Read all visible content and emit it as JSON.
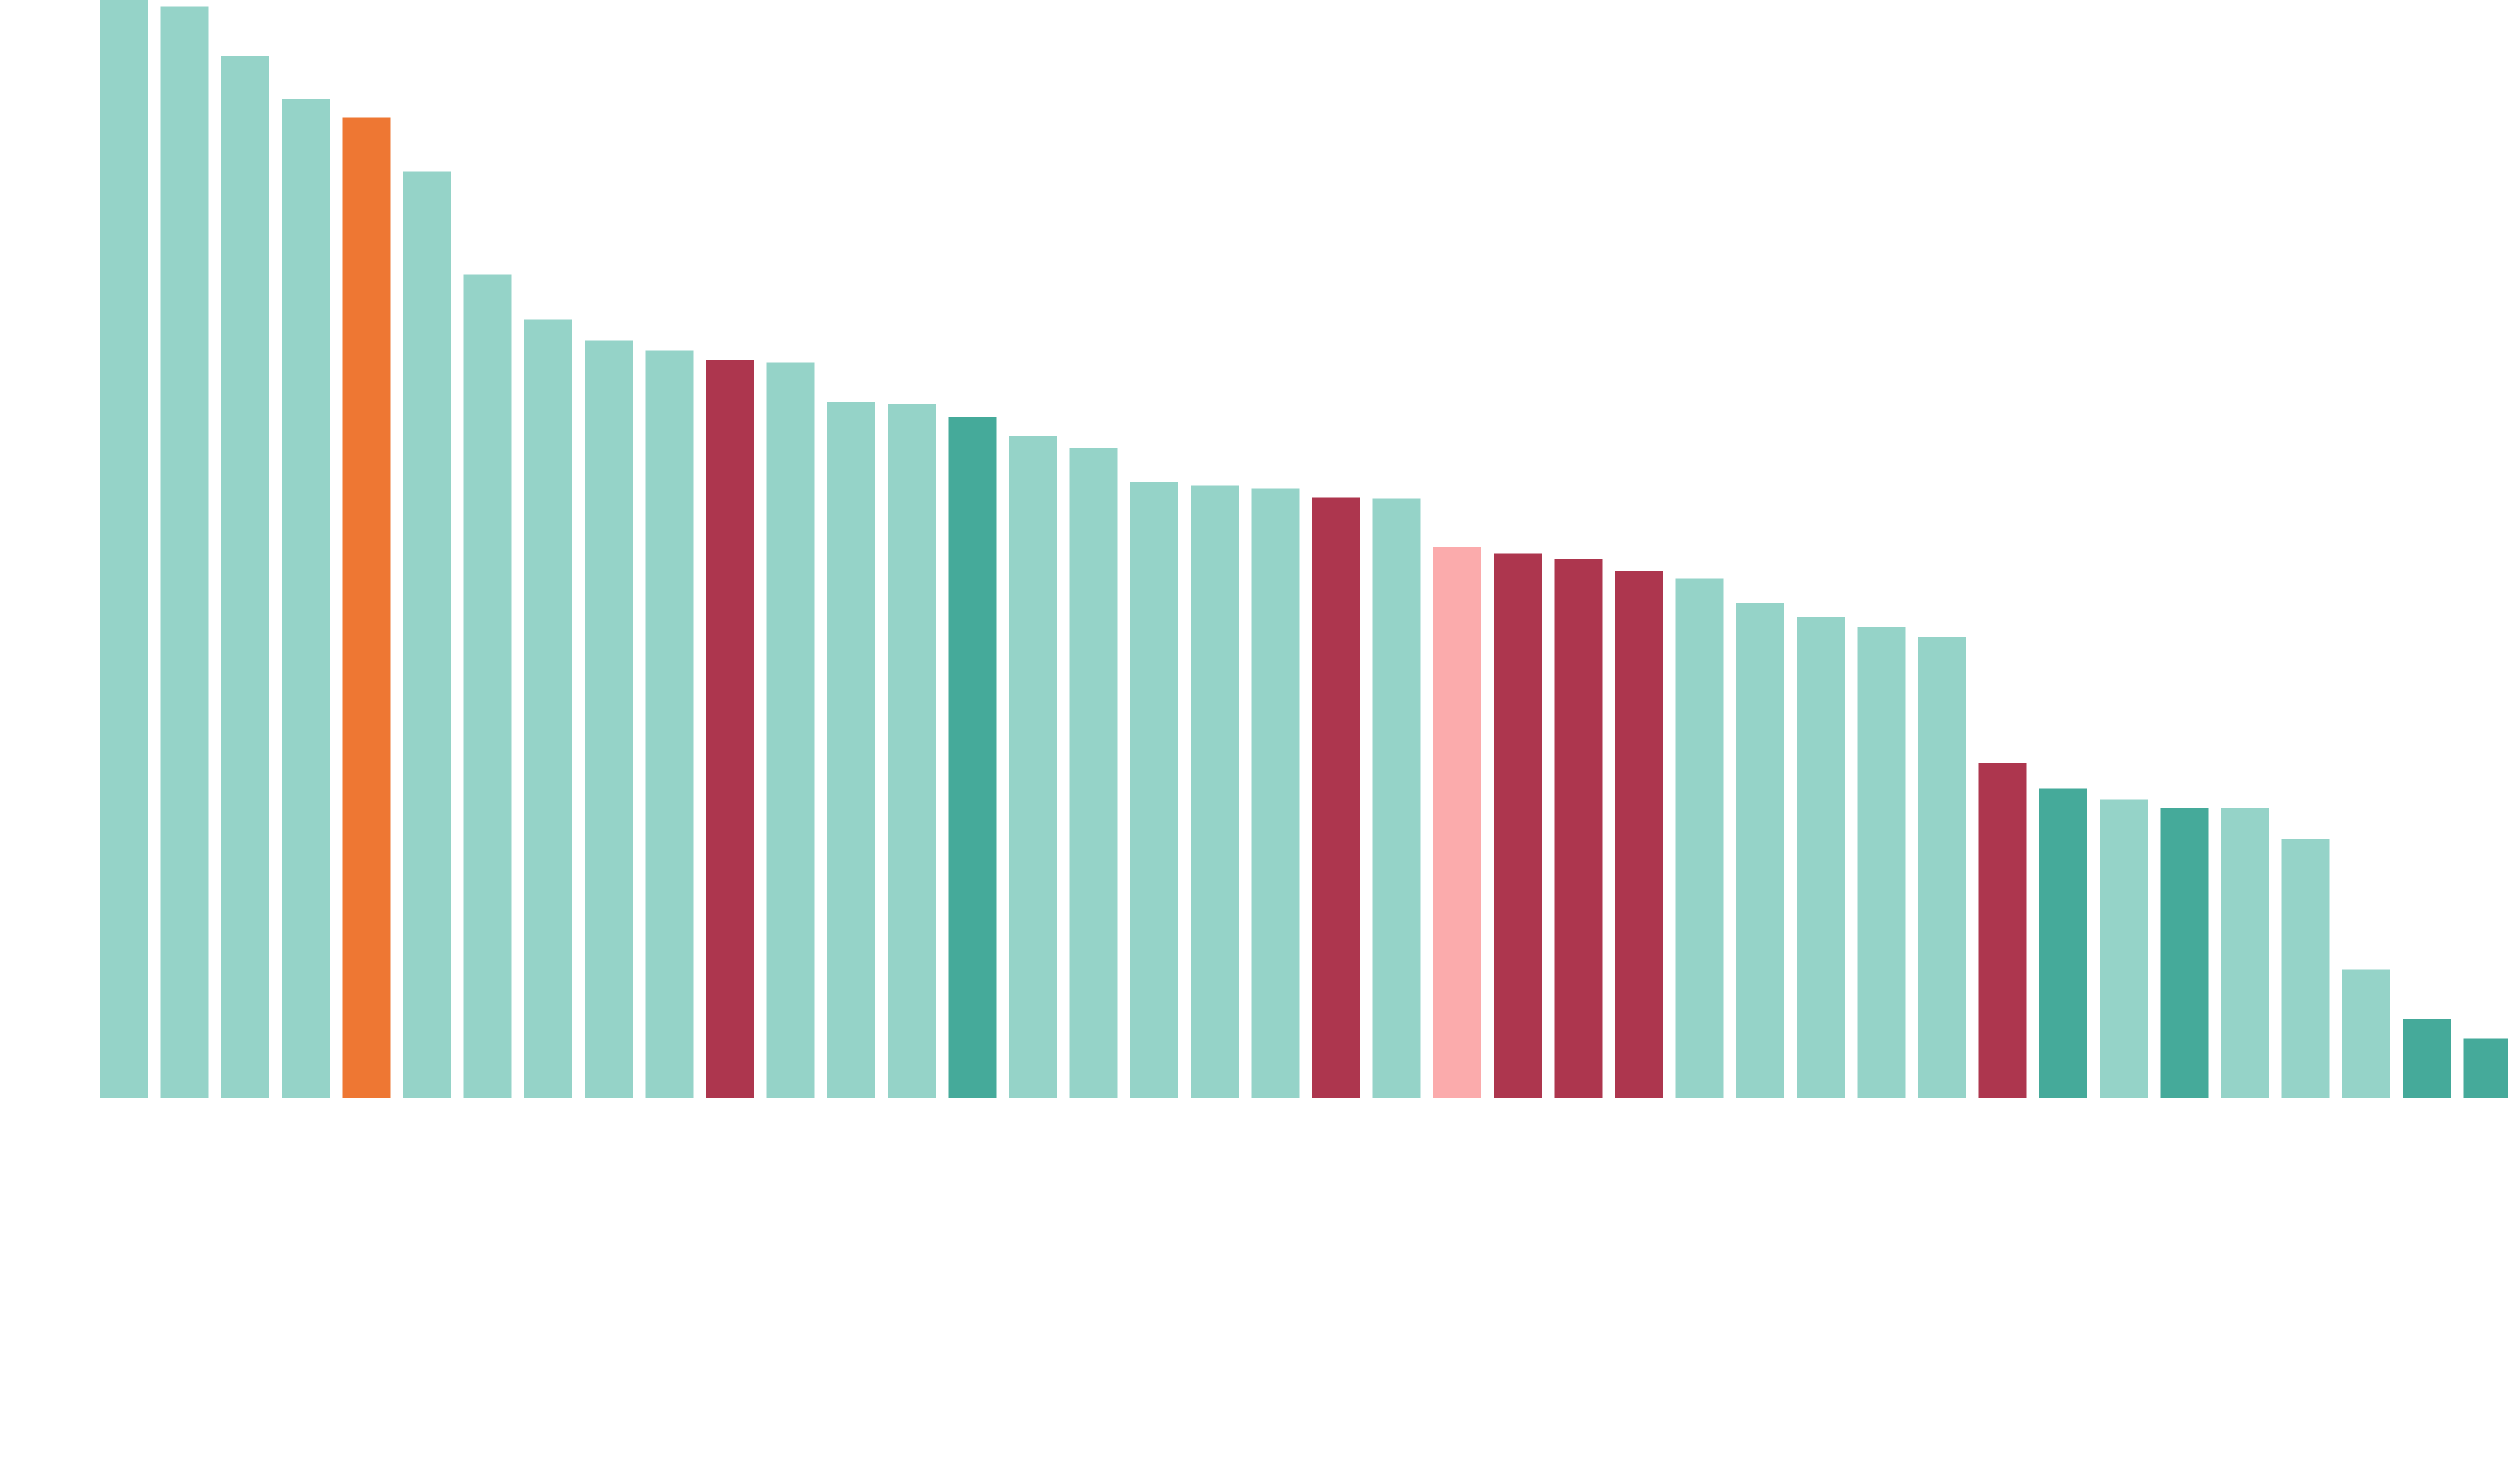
{
  "chart_data": {
    "type": "bar",
    "title": "",
    "xlabel": "",
    "ylabel": "",
    "grid": false,
    "legend": "none",
    "ylim": [
      0,
      100
    ],
    "values": [
      100,
      99.4,
      94.9,
      91.0,
      89.3,
      84.4,
      75.0,
      70.9,
      69.0,
      68.1,
      67.2,
      67.0,
      63.4,
      63.2,
      62.0,
      60.3,
      59.2,
      56.1,
      55.8,
      55.5,
      54.7,
      54.6,
      50.2,
      49.6,
      49.1,
      48.0,
      47.3,
      45.1,
      43.8,
      42.9,
      42.0,
      30.5,
      28.2,
      27.2,
      26.4,
      26.4,
      23.6,
      11.7,
      7.2,
      5.4
    ],
    "categories": [
      "",
      "",
      "",
      "",
      "",
      "",
      "",
      "",
      "",
      "",
      "",
      "",
      "",
      "",
      "",
      "",
      "",
      "",
      "",
      "",
      "",
      "",
      "",
      "",
      "",
      "",
      "",
      "",
      "",
      "",
      "",
      "",
      "",
      "",
      "",
      "",
      "",
      "",
      "",
      ""
    ],
    "colors": [
      "#95d3c8",
      "#95d3c8",
      "#95d3c8",
      "#95d3c8",
      "#ee7733",
      "#95d3c8",
      "#95d3c8",
      "#95d3c8",
      "#95d3c8",
      "#95d3c8",
      "#ad364e",
      "#95d3c8",
      "#95d3c8",
      "#95d3c8",
      "#45aa9a",
      "#95d3c8",
      "#95d3c8",
      "#95d3c8",
      "#95d3c8",
      "#95d3c8",
      "#ad364e",
      "#95d3c8",
      "#fbabac",
      "#ad364e",
      "#ad364e",
      "#ad364e",
      "#95d3c8",
      "#95d3c8",
      "#95d3c8",
      "#95d3c8",
      "#95d3c8",
      "#ad364e",
      "#45aa9a",
      "#95d3c8",
      "#45aa9a",
      "#95d3c8",
      "#95d3c8",
      "#95d3c8",
      "#45aa9a",
      "#45aa9a"
    ]
  }
}
